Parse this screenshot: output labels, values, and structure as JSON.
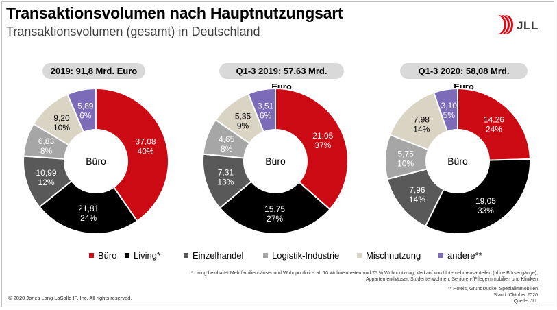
{
  "title": "Transaktionsvolumen nach Hauptnutzungsart",
  "subtitle": "Transaktionsvolumen (gesamt) in Deutschland",
  "logo": {
    "text": "JLL",
    "color": "#e30613"
  },
  "colors": {
    "Büro": "#cc0a14",
    "Living*": "#000000",
    "Einzelhandel": "#595959",
    "Logistik-Industrie": "#a6a6a6",
    "Mischnutzung": "#d9d4c3",
    "andere**": "#7b6bb8"
  },
  "chart_data": [
    {
      "type": "pie",
      "title": "2019: 91,8 Mrd. Euro",
      "center_label": "Büro",
      "slices": [
        {
          "label": "Büro",
          "value": 37.08,
          "value_text": "37,08",
          "pct_text": "40%"
        },
        {
          "label": "Living*",
          "value": 21.81,
          "value_text": "21,81",
          "pct_text": "24%"
        },
        {
          "label": "Einzelhandel",
          "value": 10.99,
          "value_text": "10,99",
          "pct_text": "12%"
        },
        {
          "label": "Logistik-Industrie",
          "value": 6.83,
          "value_text": "6,83",
          "pct_text": "8%"
        },
        {
          "label": "Mischnutzung",
          "value": 9.2,
          "value_text": "9,20",
          "pct_text": "10%"
        },
        {
          "label": "andere**",
          "value": 5.89,
          "value_text": "5,89",
          "pct_text": "6%"
        }
      ]
    },
    {
      "type": "pie",
      "title": "Q1-3 2019: 57,63 Mrd. Euro",
      "center_label": "Büro",
      "slices": [
        {
          "label": "Büro",
          "value": 21.05,
          "value_text": "21,05",
          "pct_text": "37%"
        },
        {
          "label": "Living*",
          "value": 15.75,
          "value_text": "15,75",
          "pct_text": "27%"
        },
        {
          "label": "Einzelhandel",
          "value": 7.31,
          "value_text": "7,31",
          "pct_text": "13%"
        },
        {
          "label": "Logistik-Industrie",
          "value": 4.65,
          "value_text": "4,65",
          "pct_text": "8%"
        },
        {
          "label": "Mischnutzung",
          "value": 5.35,
          "value_text": "5,35",
          "pct_text": "9%"
        },
        {
          "label": "andere**",
          "value": 3.51,
          "value_text": "3,51",
          "pct_text": "6%"
        }
      ]
    },
    {
      "type": "pie",
      "title": "Q1-3 2020: 58,08 Mrd. Euro",
      "center_label": "Büro",
      "slices": [
        {
          "label": "Büro",
          "value": 14.26,
          "value_text": "14,26",
          "pct_text": "24%"
        },
        {
          "label": "Living*",
          "value": 19.05,
          "value_text": "19,05",
          "pct_text": "33%"
        },
        {
          "label": "Einzelhandel",
          "value": 7.96,
          "value_text": "7,96",
          "pct_text": "14%"
        },
        {
          "label": "Logistik-Industrie",
          "value": 5.75,
          "value_text": "5,75",
          "pct_text": "10%"
        },
        {
          "label": "Mischnutzung",
          "value": 7.98,
          "value_text": "7,98",
          "pct_text": "14%"
        },
        {
          "label": "andere**",
          "value": 3.1,
          "value_text": "3,10",
          "pct_text": "5%"
        }
      ]
    }
  ],
  "legend": [
    "Büro",
    "Living*",
    "Einzelhandel",
    "Logistik-Industrie",
    "Mischnutzung",
    "andere**"
  ],
  "footnotes": {
    "living_1": "* Living beinhaltet Mehrfamilienhäuser und Wohnportfolios ab 10 Wohneinheiten und 75 % Wohnnutzung, Verkauf von Unternehmensanteilen (ohne Börsengänge),",
    "living_2": "Appartementhäuser, Studentenwohnen, Senioren-/Pflegeimmobilien und Kliniken",
    "andere": "** Hotels, Grundstücke, Spezialimmobilien",
    "stand": "Stand: Oktober 2020",
    "quelle": "Quelle: JLL"
  },
  "copyright": "© 2020 Jones Lang LaSalle IP, Inc. All rights reserved."
}
